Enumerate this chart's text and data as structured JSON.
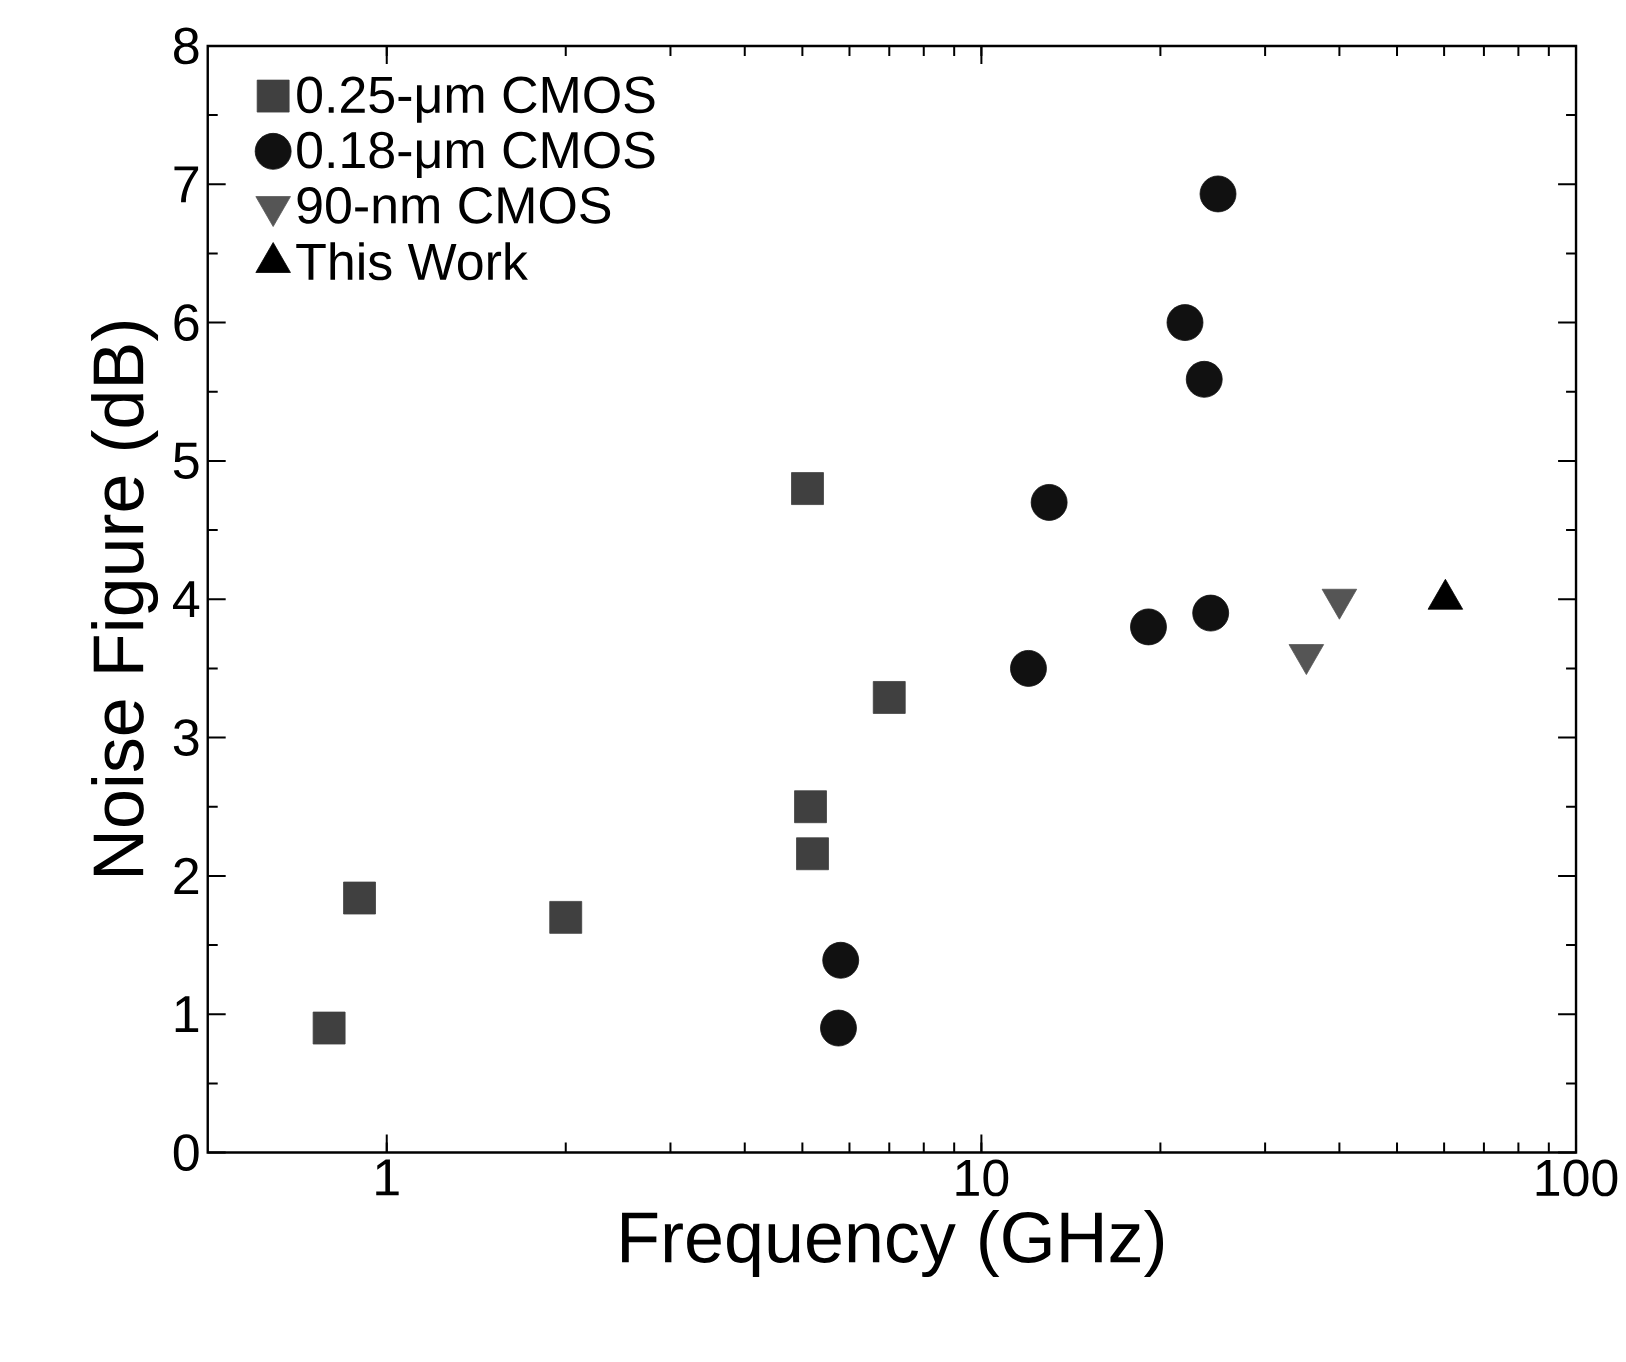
{
  "chart_data": {
    "type": "scatter",
    "xlabel": "Frequency (GHz)",
    "ylabel": "Noise Figure (dB)",
    "log": "x",
    "xlim": [
      0.5,
      100
    ],
    "xticks": [
      1,
      10,
      100
    ],
    "ylim": [
      0,
      8
    ],
    "yticks": [
      0,
      1,
      2,
      3,
      4,
      5,
      6,
      7,
      8
    ],
    "legend": "top left",
    "grid": false,
    "series": [
      {
        "name": "0.25-μm CMOS",
        "color": "#404040",
        "marker": "square",
        "x": [
          0.8,
          0.9,
          2.0,
          5.1,
          5.16,
          5.2,
          7.0
        ],
        "values": [
          0.9,
          1.84,
          1.7,
          4.8,
          2.5,
          2.16,
          3.29
        ]
      },
      {
        "name": "0.18-μm CMOS",
        "color": "#111111",
        "marker": "circle",
        "x": [
          5.75,
          5.8,
          12,
          13,
          19.1,
          22,
          23.7,
          24.3,
          25
        ],
        "values": [
          0.9,
          1.39,
          3.5,
          4.7,
          3.8,
          6.0,
          5.59,
          3.9,
          6.93
        ]
      },
      {
        "name": "90-nm CMOS",
        "color": "#555555",
        "marker": "triangle down",
        "x": [
          35.2,
          40
        ],
        "values": [
          3.6,
          4.0
        ]
      },
      {
        "name": "This Work",
        "color": "#000000",
        "marker": "triangle",
        "x": [
          60.3
        ],
        "values": [
          4.0
        ]
      }
    ]
  }
}
